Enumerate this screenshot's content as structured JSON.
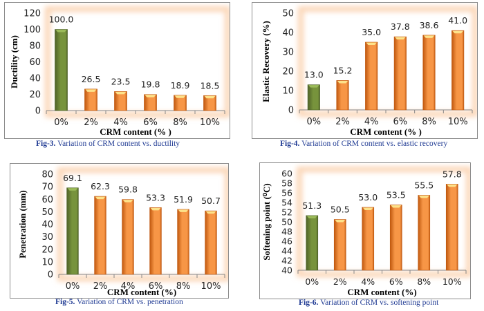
{
  "chart_data": [
    {
      "type": "bar",
      "title": "",
      "categories": [
        "0%",
        "2%",
        "4%",
        "6%",
        "8%",
        "10%"
      ],
      "values": [
        100.0,
        26.5,
        23.5,
        19.8,
        18.9,
        18.5
      ],
      "value_labels": [
        "100.0",
        "26.5",
        "23.5",
        "19.8",
        "18.9",
        "18.5"
      ],
      "xlabel": "CRM content (% )",
      "ylabel": "Ductility (cm)",
      "ylim": [
        0,
        120
      ],
      "yticks": [
        0,
        20,
        40,
        60,
        80,
        100,
        120
      ],
      "highlight_first": true,
      "caption_prefix": "Fig-3.",
      "caption_text": " Variation of CRM content vs. ductility",
      "grid": false
    },
    {
      "type": "bar",
      "title": "",
      "categories": [
        "0%",
        "2%",
        "4%",
        "6%",
        "8%",
        "10%"
      ],
      "values": [
        13.0,
        15.2,
        35.0,
        37.8,
        38.6,
        41.0
      ],
      "value_labels": [
        "13.0",
        "15.2",
        "35.0",
        "37.8",
        "38.6",
        "41.0"
      ],
      "xlabel": "CRM content (% )",
      "ylabel": "Elastic Recovery  (%)",
      "ylim": [
        0,
        50
      ],
      "yticks": [
        0,
        10,
        20,
        30,
        40,
        50
      ],
      "highlight_first": true,
      "caption_prefix": "Fig-4.",
      "caption_text": " Variation of CRM content vs. elastic recovery",
      "grid": false
    },
    {
      "type": "bar",
      "title": "",
      "categories": [
        "0%",
        "2%",
        "4%",
        "6%",
        "8%",
        "10%"
      ],
      "values": [
        69.1,
        62.3,
        59.8,
        53.3,
        51.9,
        50.7
      ],
      "value_labels": [
        "69.1",
        "62.3",
        "59.8",
        "53.3",
        "51.9",
        "50.7"
      ],
      "xlabel": "CRM content (%)",
      "ylabel": "Penetration (mm)",
      "ylim": [
        0,
        80
      ],
      "yticks": [
        0,
        10,
        20,
        30,
        40,
        50,
        60,
        70,
        80
      ],
      "highlight_first": true,
      "caption_prefix": "Fig-5.",
      "caption_text": " Variation of CRM vs. penetration",
      "grid": false
    },
    {
      "type": "bar",
      "title": "",
      "categories": [
        "0%",
        "2%",
        "4%",
        "6%",
        "8%",
        "10%"
      ],
      "values": [
        51.3,
        50.5,
        53.0,
        53.5,
        55.5,
        57.8
      ],
      "value_labels": [
        "51.3",
        "50.5",
        "53.0",
        "53.5",
        "55.5",
        "57.8"
      ],
      "xlabel": "CRM content (%)",
      "ylabel": "Softening point (⁰C)",
      "ylim": [
        40,
        60
      ],
      "yticks": [
        40,
        42,
        44,
        46,
        48,
        50,
        52,
        54,
        56,
        58,
        60
      ],
      "highlight_first": true,
      "caption_prefix": "Fig-6.",
      "caption_text": " Variation of CRM vs. softening point",
      "grid": false
    }
  ],
  "colors": {
    "first_bar": "#77933c",
    "first_bar_light": "#9bbb59",
    "first_bar_dark": "#4f6228",
    "other_bar": "#f79646",
    "other_bar_light": "#fac08f",
    "other_bar_dark": "#c0580f",
    "glow": "#fbd5b5",
    "caption": "#1f3a93",
    "axis": "#868686",
    "text": "#222222"
  }
}
